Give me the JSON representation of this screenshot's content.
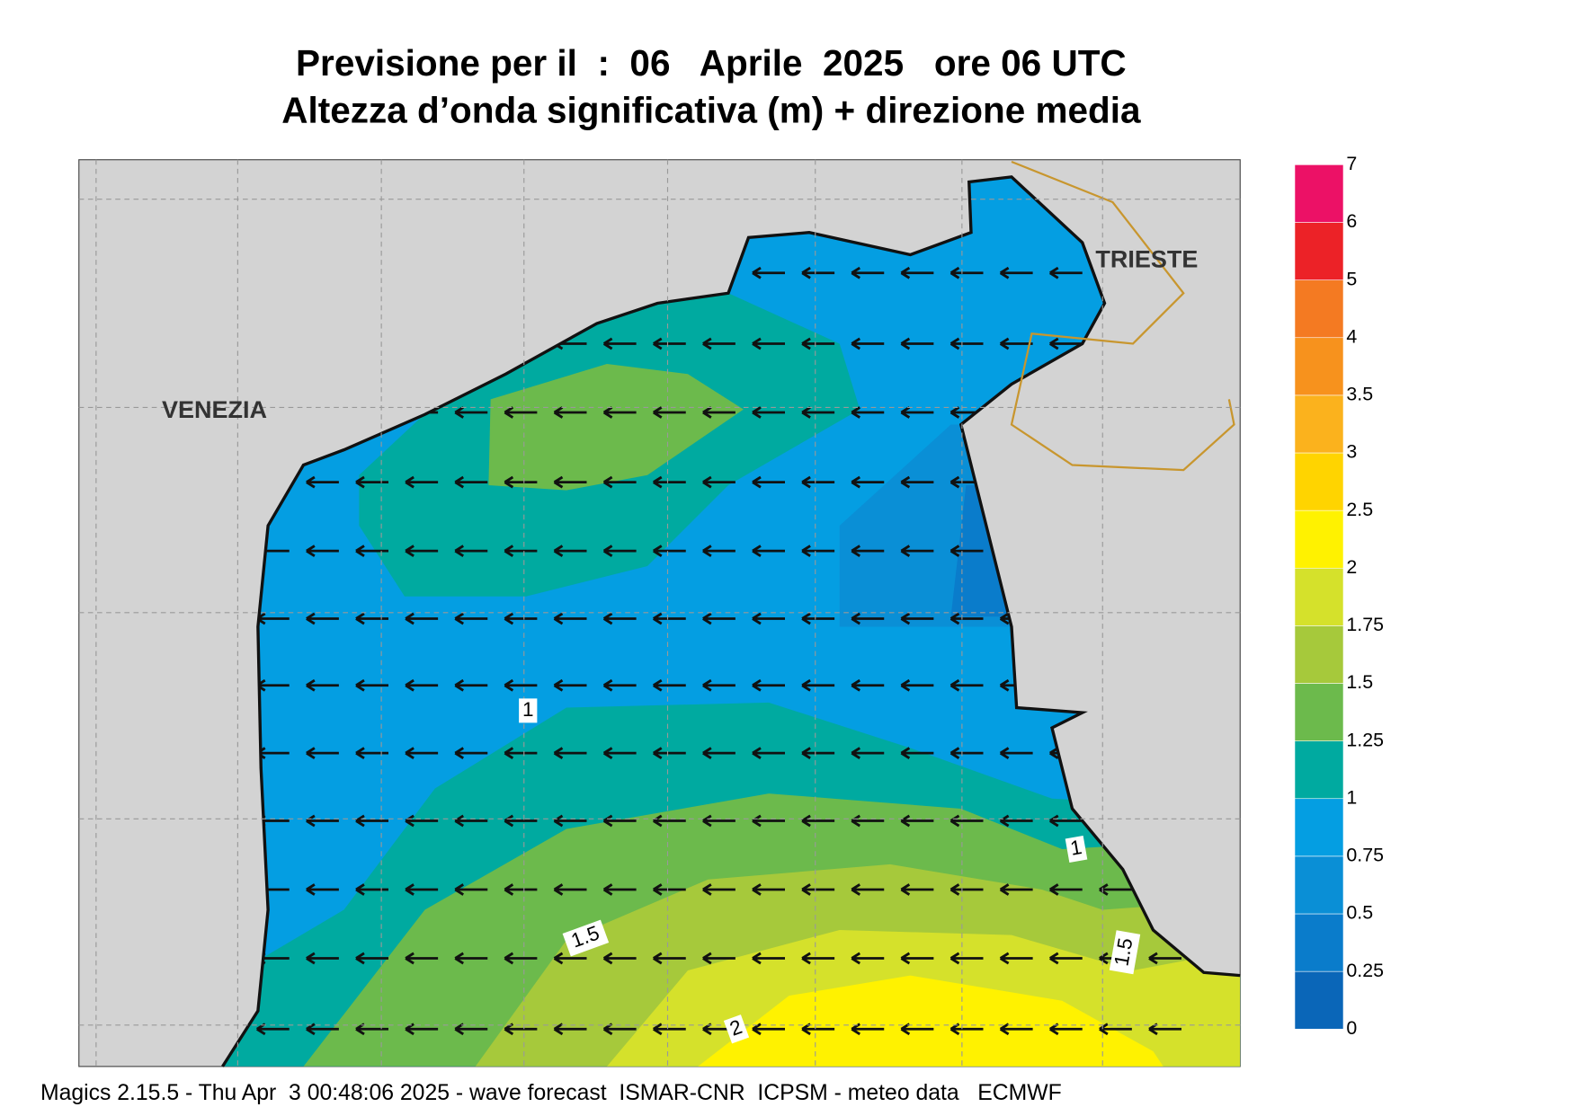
{
  "header": {
    "title": "Previsione per il  :  06   Aprile  2025   ore 06 UTC",
    "subtitle": "Altezza d’onda significativa (m) + direzione media"
  },
  "map": {
    "cities": [
      "VENEZIA",
      "TRIESTE"
    ],
    "contour_labels": [
      "1",
      "1",
      "1.5",
      "1.5",
      "2"
    ]
  },
  "colorbar": {
    "ticks": [
      0,
      0.25,
      0.5,
      0.75,
      1,
      1.25,
      1.5,
      1.75,
      2,
      2.5,
      3,
      3.5,
      4,
      5,
      6,
      7
    ],
    "colors": [
      "#0a66b8",
      "#0a7ccb",
      "#0a8fd6",
      "#049ee2",
      "#00aaa0",
      "#6cba4c",
      "#a6c93b",
      "#d5e12b",
      "#fff200",
      "#ffd400",
      "#fbb21d",
      "#f7921d",
      "#f47a22",
      "#ec2227",
      "#ec1166"
    ]
  },
  "footer": "Magics 2.15.5 - Thu Apr  3 00:48:06 2025 - wave forecast  ISMAR-CNR  ICPSM - meteo data   ECMWF"
}
